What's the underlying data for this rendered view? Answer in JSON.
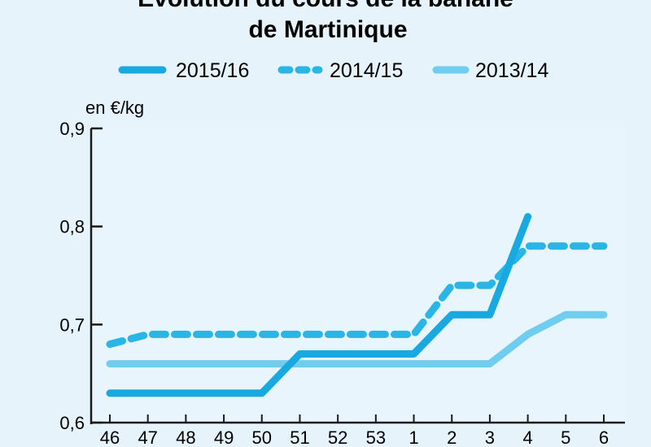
{
  "chart_data": {
    "type": "line",
    "title_line1": "Évolution du cours de la banane",
    "title_line2": "de Martinique",
    "ylabel": "en €/kg",
    "ylim": [
      0.6,
      0.9
    ],
    "yticks": [
      "0,6",
      "0,7",
      "0,8",
      "0,9"
    ],
    "categories": [
      "46",
      "47",
      "48",
      "49",
      "50",
      "51",
      "52",
      "53",
      "1",
      "2",
      "3",
      "4",
      "5",
      "6"
    ],
    "series": [
      {
        "name": "2015/16",
        "style": "solid",
        "color": "#17a9e0",
        "values": [
          0.63,
          0.63,
          0.63,
          0.63,
          0.63,
          0.67,
          0.67,
          0.67,
          0.67,
          0.71,
          0.71,
          0.81,
          null,
          null
        ]
      },
      {
        "name": "2014/15",
        "style": "dashed",
        "color": "#29b6e6",
        "values": [
          0.68,
          0.69,
          0.69,
          0.69,
          0.69,
          0.69,
          0.69,
          0.69,
          0.69,
          0.74,
          0.74,
          0.78,
          0.78,
          0.78
        ]
      },
      {
        "name": "2013/14",
        "style": "solid-light",
        "color": "#6fcdf0",
        "values": [
          0.66,
          0.66,
          0.66,
          0.66,
          0.66,
          0.66,
          0.66,
          0.66,
          0.66,
          0.66,
          0.66,
          0.69,
          0.71,
          0.71
        ]
      }
    ]
  }
}
